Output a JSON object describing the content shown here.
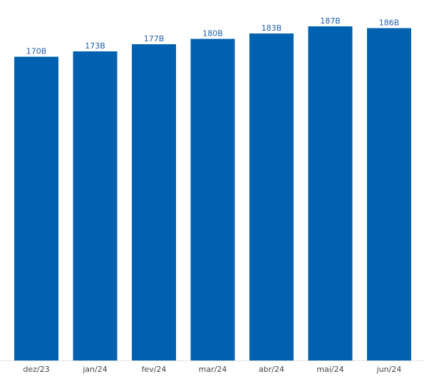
{
  "chart_data": {
    "type": "bar",
    "categories": [
      "dez/23",
      "jan/24",
      "fev/24",
      "mar/24",
      "abr/24",
      "mai/24",
      "jun/24"
    ],
    "values": [
      170,
      173,
      177,
      180,
      183,
      187,
      186
    ],
    "data_labels": [
      "170B",
      "173B",
      "177B",
      "180B",
      "183B",
      "187B",
      "186B"
    ],
    "title": "",
    "xlabel": "",
    "ylabel": "",
    "ylim": [
      0,
      187
    ],
    "grid": false,
    "legend": "none",
    "colors": {
      "bar": "#0061b0",
      "label": "#1f5fa8",
      "tick": "#444444",
      "axis": "#e3e3e3"
    }
  }
}
